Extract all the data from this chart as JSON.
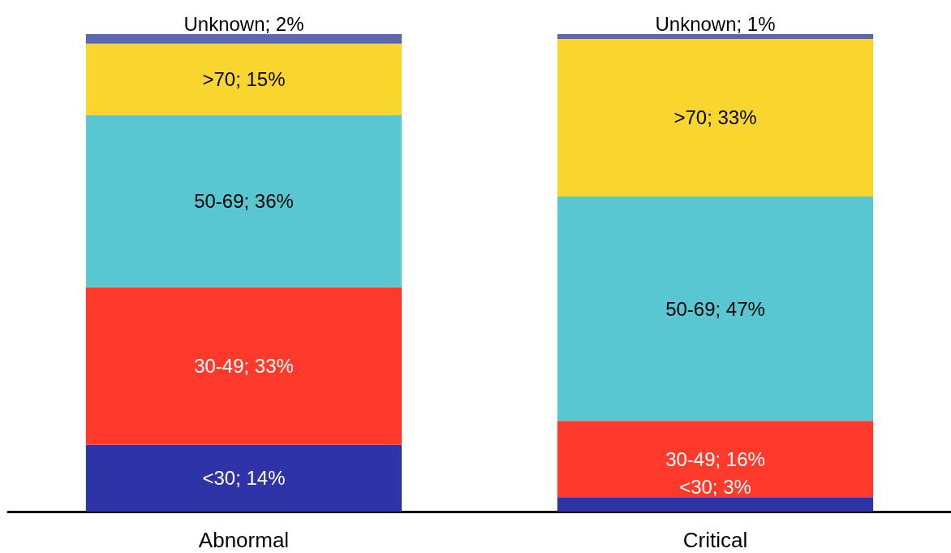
{
  "chart_data": {
    "type": "bar",
    "stacked": true,
    "categories": [
      "Abnormal",
      "Critical"
    ],
    "ylim": [
      0,
      100
    ],
    "tick_labels": "x",
    "grid": false,
    "series": [
      {
        "color": "#2e33a8",
        "values": [
          14,
          3
        ],
        "value_labels": [
          "<30; 14%",
          "<30; 3%"
        ]
      },
      {
        "color": "#ff3a2a",
        "values": [
          33,
          16
        ],
        "value_labels": [
          "30-49; 33%",
          "30-49; 16%"
        ]
      },
      {
        "color": "#58c7d2",
        "values": [
          36,
          47
        ],
        "value_labels": [
          "50-69; 36%",
          "50-69; 47%"
        ]
      },
      {
        "color": "#f9d62e",
        "values": [
          15,
          33
        ],
        "value_labels": [
          ">70; 15%",
          ">70; 33%"
        ]
      },
      {
        "color": "#5d67b0",
        "values": [
          2,
          1
        ],
        "value_labels": [
          "Unknown; 2%",
          "Unknown; 1%"
        ]
      }
    ]
  }
}
